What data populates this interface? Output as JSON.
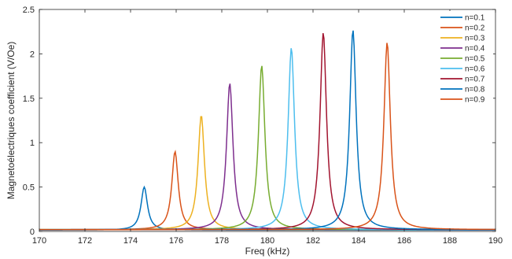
{
  "chart_data": {
    "type": "line",
    "xlabel": "Freq (kHz)",
    "ylabel": "Magnetoélectriques coefficient (V/Oe)",
    "xlim": [
      170,
      190
    ],
    "ylim": [
      0,
      2.5
    ],
    "xticks": [
      170,
      172,
      174,
      176,
      178,
      180,
      182,
      184,
      186,
      188,
      190
    ],
    "yticks": [
      0,
      0.5,
      1,
      1.5,
      2,
      2.5
    ],
    "xtick_labels": [
      "170",
      "172",
      "174",
      "176",
      "178",
      "180",
      "182",
      "184",
      "186",
      "188",
      "190"
    ],
    "ytick_labels": [
      "0",
      "0.5",
      "1",
      "1.5",
      "2",
      "2.5"
    ],
    "grid": false,
    "legend_position": "top-right",
    "series": [
      {
        "name": "n=0.1",
        "color": "#0072BD",
        "peak_x": 174.6,
        "peak_y": 0.5,
        "baseline": 0.015
      },
      {
        "name": "n=0.2",
        "color": "#D95319",
        "peak_x": 175.95,
        "peak_y": 0.9,
        "baseline": 0.02
      },
      {
        "name": "n=0.3",
        "color": "#EDB120",
        "peak_x": 177.1,
        "peak_y": 1.31,
        "baseline": 0.02
      },
      {
        "name": "n=0.4",
        "color": "#7E2F8E",
        "peak_x": 178.35,
        "peak_y": 1.67,
        "baseline": 0.02
      },
      {
        "name": "n=0.5",
        "color": "#77AC30",
        "peak_x": 179.75,
        "peak_y": 1.87,
        "baseline": 0.02
      },
      {
        "name": "n=0.6",
        "color": "#4DBEEE",
        "peak_x": 181.05,
        "peak_y": 2.07,
        "baseline": 0.02
      },
      {
        "name": "n=0.7",
        "color": "#A2142F",
        "peak_x": 182.45,
        "peak_y": 2.24,
        "baseline": 0.02
      },
      {
        "name": "n=0.8",
        "color": "#0072BD",
        "peak_x": 183.75,
        "peak_y": 2.27,
        "baseline": 0.02
      },
      {
        "name": "n=0.9",
        "color": "#D95319",
        "peak_x": 185.25,
        "peak_y": 2.13,
        "baseline": 0.02
      }
    ]
  }
}
